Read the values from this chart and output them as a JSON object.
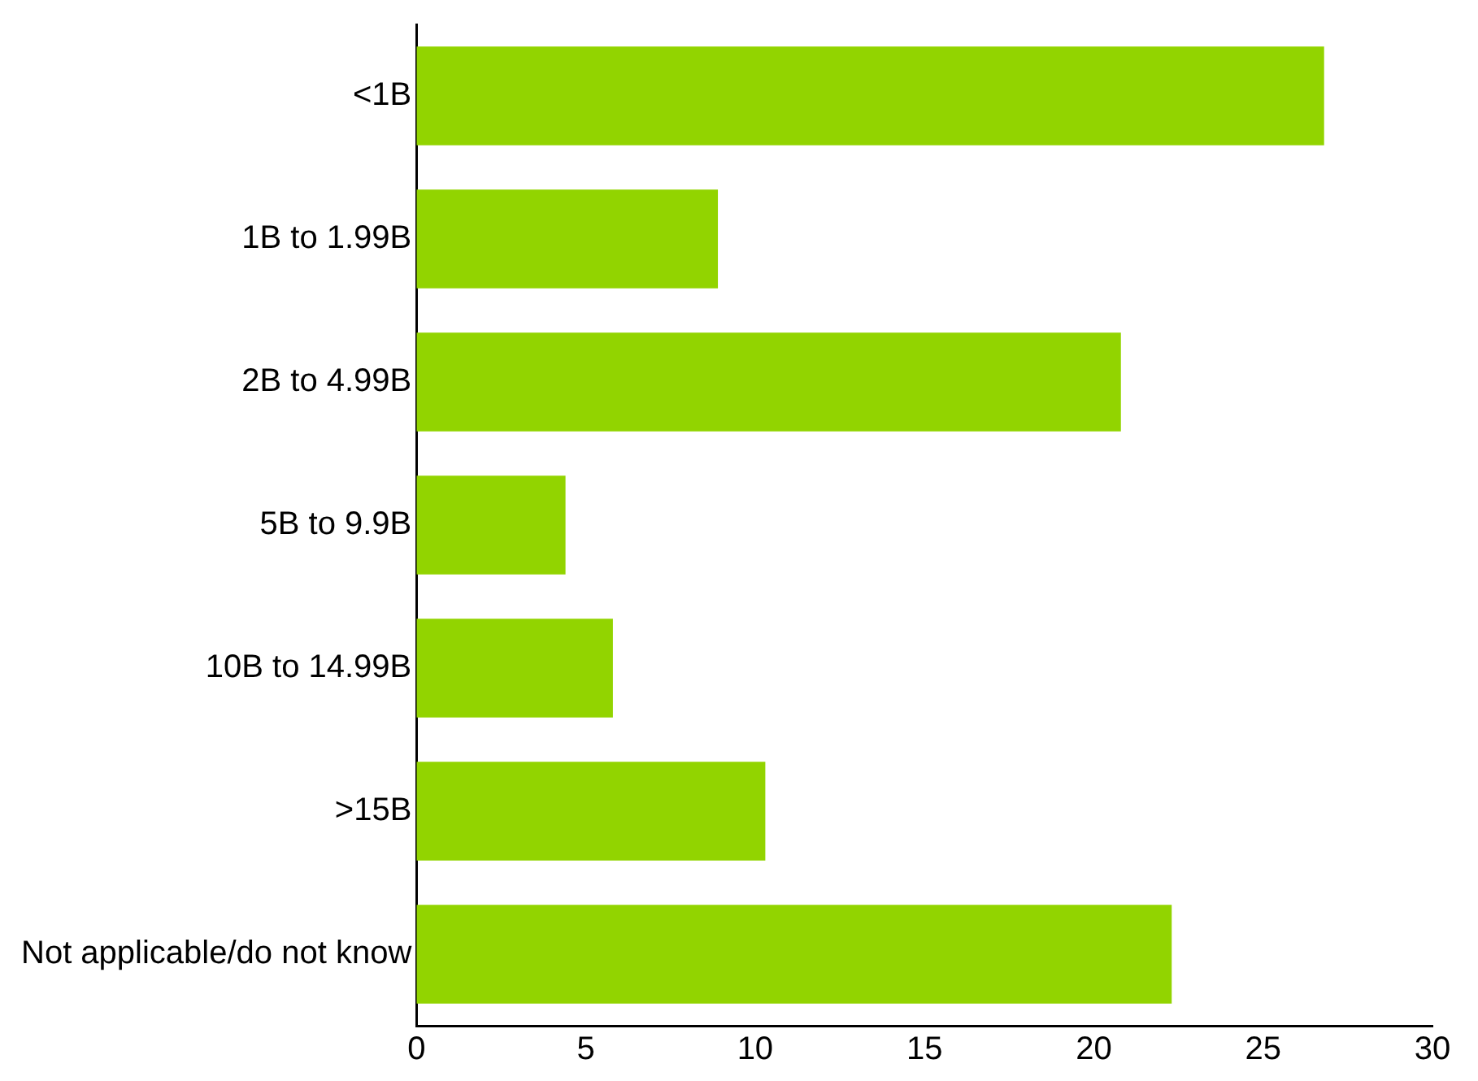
{
  "chart_data": {
    "type": "bar",
    "orientation": "horizontal",
    "categories": [
      "<1B",
      "1B to 1.99B",
      "2B to 4.99B",
      "5B to 9.9B",
      "10B to 14.99B",
      ">15B",
      "Not applicable/do not know"
    ],
    "values": [
      26.8,
      8.9,
      20.8,
      4.4,
      5.8,
      10.3,
      22.3
    ],
    "color": "#92d400",
    "xlim": [
      0,
      30
    ],
    "xticks": [
      0,
      5,
      10,
      15,
      20,
      25,
      30
    ],
    "grid": false,
    "legend": false
  }
}
